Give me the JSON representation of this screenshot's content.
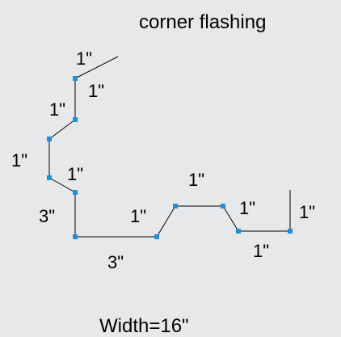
{
  "title": "corner flashing",
  "footer": "Width=16\"",
  "colors": {
    "background": "#e7e8ea",
    "line": "#000000",
    "vertex": "#1e8fd8"
  },
  "labels": {
    "l1": "1\"",
    "l2": "1\"",
    "l3": "1\"",
    "l4": "1\"",
    "l5": "1\"",
    "l6": "3\"",
    "l7": "3\"",
    "l8": "1\"",
    "l9": "1\"",
    "l10": "1\"",
    "l11": "1\"",
    "l12": "1\""
  }
}
